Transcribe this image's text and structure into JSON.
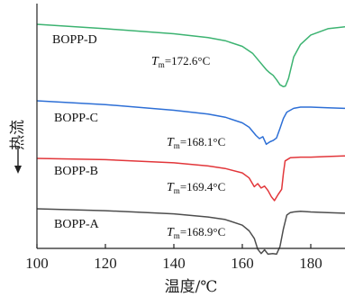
{
  "chart_data": {
    "type": "line",
    "xlabel": "温度/℃",
    "ylabel": "热流",
    "xlim": [
      100,
      190
    ],
    "x_ticks": [
      "100",
      "120",
      "140",
      "160",
      "180"
    ],
    "grid": false,
    "series": [
      {
        "name": "BOPP-D",
        "color": "#3cb371",
        "tm_symbol": "T",
        "tm_sub": "m",
        "tm_value": "=172.6°C",
        "x": [
          100,
          120,
          140,
          150,
          155,
          160,
          163,
          165,
          167,
          168,
          169,
          170,
          171,
          172,
          172.6,
          173.5,
          175,
          177,
          180,
          185,
          190
        ],
        "y": [
          0.0,
          -0.35,
          -0.75,
          -1.05,
          -1.3,
          -1.75,
          -2.3,
          -2.95,
          -3.6,
          -3.85,
          -4.05,
          -4.4,
          -4.8,
          -4.95,
          -4.9,
          -4.3,
          -2.6,
          -1.6,
          -0.85,
          -0.35,
          -0.2
        ]
      },
      {
        "name": "BOPP-C",
        "color": "#2d6fd6",
        "tm_symbol": "T",
        "tm_sub": "m",
        "tm_value": "=168.1°C",
        "x": [
          100,
          120,
          140,
          150,
          155,
          160,
          162,
          164,
          165,
          166,
          166.5,
          167,
          168.1,
          169,
          170,
          171,
          172,
          173,
          175,
          177,
          180,
          185,
          190
        ],
        "y": [
          0.0,
          -0.3,
          -0.75,
          -1.05,
          -1.3,
          -1.75,
          -2.1,
          -2.75,
          -3.0,
          -2.85,
          -3.15,
          -3.45,
          -3.25,
          -3.15,
          -2.95,
          -2.2,
          -1.4,
          -0.9,
          -0.6,
          -0.5,
          -0.5,
          -0.55,
          -0.6
        ]
      },
      {
        "name": "BOPP-B",
        "color": "#e2363a",
        "tm_symbol": "T",
        "tm_sub": "m",
        "tm_value": "=169.4°C",
        "x": [
          100,
          120,
          140,
          150,
          155,
          160,
          162,
          163.5,
          164.5,
          165.5,
          166.5,
          167.5,
          168.5,
          169.4,
          170.5,
          171.5,
          172,
          172.5,
          174,
          177,
          180,
          185,
          190
        ],
        "y": [
          0.0,
          -0.1,
          -0.35,
          -0.6,
          -0.8,
          -1.15,
          -1.55,
          -2.25,
          -2.0,
          -2.35,
          -2.2,
          -2.55,
          -3.05,
          -3.35,
          -2.85,
          -2.45,
          -1.2,
          -0.2,
          0.05,
          0.1,
          0.1,
          0.15,
          0.2
        ]
      },
      {
        "name": "BOPP-A",
        "color": "#4d4d4d",
        "tm_symbol": "T",
        "tm_sub": "m",
        "tm_value": "=168.9°C",
        "x": [
          100,
          120,
          140,
          150,
          155,
          160,
          162,
          163.5,
          164.5,
          165.5,
          166.5,
          167.5,
          168.9,
          170,
          171,
          172,
          173,
          174,
          175,
          177,
          180,
          185,
          190
        ],
        "y": [
          0.0,
          -0.15,
          -0.4,
          -0.65,
          -0.85,
          -1.3,
          -1.75,
          -2.35,
          -3.2,
          -3.55,
          -3.25,
          -3.6,
          -3.55,
          -3.6,
          -3.0,
          -1.6,
          -0.5,
          -0.3,
          -0.25,
          -0.2,
          -0.25,
          -0.3,
          -0.35
        ]
      }
    ]
  }
}
